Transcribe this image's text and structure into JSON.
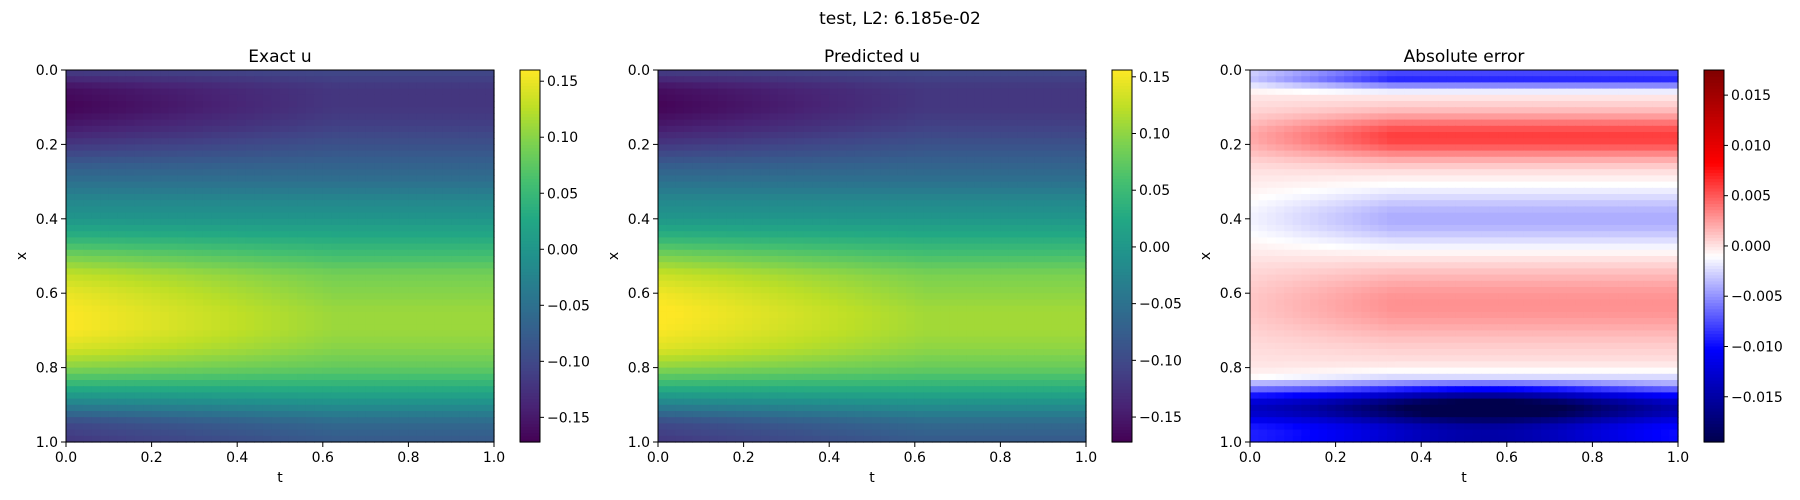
{
  "figure": {
    "suptitle": "test, L2: 6.185e-02"
  },
  "chart_data": [
    {
      "type": "heatmap",
      "title": "Exact u",
      "xlabel": "t",
      "ylabel": "x",
      "xlim": [
        0,
        1
      ],
      "ylim": [
        1,
        0
      ],
      "xticks": [
        "0.0",
        "0.2",
        "0.4",
        "0.6",
        "0.8",
        "1.0"
      ],
      "yticks": [
        "0.0",
        "0.2",
        "0.4",
        "0.6",
        "0.8",
        "1.0"
      ],
      "colormap": "viridis",
      "clim": [
        -0.172,
        0.16
      ],
      "colorbar_ticks": [
        "0.15",
        "0.10",
        "0.05",
        "0.00",
        "−0.05",
        "−0.10",
        "−0.15"
      ],
      "colorbar_values": [
        0.15,
        0.1,
        0.05,
        0.0,
        -0.05,
        -0.1,
        -0.15
      ],
      "profile_x": [
        0.0,
        0.05,
        0.1,
        0.15,
        0.2,
        0.25,
        0.3,
        0.35,
        0.4,
        0.45,
        0.5,
        0.55,
        0.6,
        0.65,
        0.7,
        0.75,
        0.8,
        0.85,
        0.9,
        0.95,
        1.0
      ],
      "u_t0": [
        -0.11,
        -0.16,
        -0.17,
        -0.15,
        -0.12,
        -0.08,
        -0.05,
        -0.02,
        0.0,
        0.04,
        0.09,
        0.13,
        0.15,
        0.16,
        0.16,
        0.14,
        0.1,
        0.04,
        -0.03,
        -0.1,
        -0.12
      ],
      "u_t1": [
        -0.1,
        -0.12,
        -0.12,
        -0.11,
        -0.09,
        -0.07,
        -0.05,
        -0.02,
        0.0,
        0.03,
        0.06,
        0.09,
        0.1,
        0.11,
        0.11,
        0.1,
        0.08,
        0.04,
        -0.01,
        -0.06,
        -0.08
      ]
    },
    {
      "type": "heatmap",
      "title": "Predicted u",
      "xlabel": "t",
      "ylabel": "x",
      "xlim": [
        0,
        1
      ],
      "ylim": [
        1,
        0
      ],
      "xticks": [
        "0.0",
        "0.2",
        "0.4",
        "0.6",
        "0.8",
        "1.0"
      ],
      "yticks": [
        "0.0",
        "0.2",
        "0.4",
        "0.6",
        "0.8",
        "1.0"
      ],
      "colormap": "viridis",
      "clim": [
        -0.172,
        0.156
      ],
      "colorbar_ticks": [
        "0.15",
        "0.10",
        "0.05",
        "0.00",
        "−0.05",
        "−0.10",
        "−0.15"
      ],
      "colorbar_values": [
        0.15,
        0.1,
        0.05,
        0.0,
        -0.05,
        -0.1,
        -0.15
      ],
      "profile_x": [
        0.0,
        0.05,
        0.1,
        0.15,
        0.2,
        0.25,
        0.3,
        0.35,
        0.4,
        0.45,
        0.5,
        0.55,
        0.6,
        0.65,
        0.7,
        0.75,
        0.8,
        0.85,
        0.9,
        0.95,
        1.0
      ],
      "u_t0": [
        -0.11,
        -0.16,
        -0.17,
        -0.15,
        -0.12,
        -0.08,
        -0.05,
        -0.02,
        0.0,
        0.04,
        0.09,
        0.13,
        0.15,
        0.16,
        0.155,
        0.14,
        0.1,
        0.04,
        -0.03,
        -0.1,
        -0.12
      ],
      "u_t1": [
        -0.1,
        -0.12,
        -0.12,
        -0.11,
        -0.09,
        -0.07,
        -0.05,
        -0.02,
        0.0,
        0.03,
        0.06,
        0.09,
        0.1,
        0.11,
        0.11,
        0.1,
        0.08,
        0.04,
        -0.01,
        -0.06,
        -0.08
      ]
    },
    {
      "type": "heatmap",
      "title": "Absolute error",
      "xlabel": "t",
      "ylabel": "x",
      "xlim": [
        0,
        1
      ],
      "ylim": [
        1,
        0
      ],
      "xticks": [
        "0.0",
        "0.2",
        "0.4",
        "0.6",
        "0.8",
        "1.0"
      ],
      "yticks": [
        "0.0",
        "0.2",
        "0.4",
        "0.6",
        "0.8",
        "1.0"
      ],
      "colormap": "seismic",
      "clim": [
        -0.0195,
        0.0175
      ],
      "colorbar_ticks": [
        "0.015",
        "0.010",
        "0.005",
        "0.000",
        "−0.005",
        "−0.010",
        "−0.015"
      ],
      "colorbar_values": [
        0.015,
        0.01,
        0.005,
        0.0,
        -0.005,
        -0.01,
        -0.015
      ],
      "error_bands": [
        {
          "x_center": 0.02,
          "width": 0.03,
          "amplitude": -0.009
        },
        {
          "x_center": 0.18,
          "width": 0.06,
          "amplitude": 0.006
        },
        {
          "x_center": 0.4,
          "width": 0.08,
          "amplitude": -0.004
        },
        {
          "x_center": 0.63,
          "width": 0.1,
          "amplitude": 0.003
        },
        {
          "x_center": 0.91,
          "width": 0.06,
          "amplitude": -0.018
        },
        {
          "x_center": 1.0,
          "width": 0.04,
          "amplitude": -0.01
        }
      ]
    }
  ]
}
